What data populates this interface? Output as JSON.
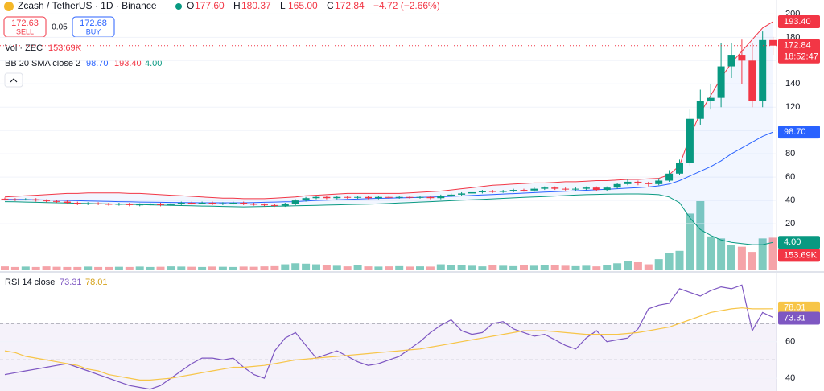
{
  "header": {
    "title": "Zcash / TetherUS · 1D · Binance",
    "ohlc": [
      {
        "label": "O",
        "value": "177.60"
      },
      {
        "label": "H",
        "value": "180.37"
      },
      {
        "label": "L",
        "value": "165.00"
      },
      {
        "label": "C",
        "value": "172.84"
      }
    ],
    "change": "−4.72 (−2.66%)",
    "sell_price": "172.63",
    "sell": "SELL",
    "spread": "0.05",
    "buy_price": "172.68",
    "buy": "BUY",
    "vol_label": "Vol · ZEC",
    "vol_value": "153.69K",
    "bb_label": "BB 20 SMA close 2",
    "bb_basis": "98.70",
    "bb_upper": "193.40",
    "bb_lower": "4.00",
    "countdown": "18:52:47",
    "rsi_label": "RSI 14 close",
    "rsi_value": "73.31",
    "rsi_ma": "78.01"
  },
  "chart_data": [
    {
      "type": "candlestick",
      "up_color": "#089981",
      "down_color": "#f23645",
      "open": [
        41.5,
        41,
        40.5,
        41,
        40,
        39.5,
        39,
        38,
        37,
        37.5,
        37,
        36.5,
        37,
        36,
        36.5,
        37,
        36,
        37,
        38,
        37.5,
        38,
        37,
        37.5,
        38,
        37,
        36.5,
        36,
        35.5,
        37,
        40,
        42,
        43,
        42,
        43,
        42.5,
        43,
        42,
        43,
        42.5,
        43,
        42.5,
        43,
        42,
        44,
        45,
        46,
        47,
        48,
        47.5,
        48,
        49,
        48.5,
        50,
        51,
        50,
        49.5,
        50,
        51,
        49,
        51,
        54,
        56,
        55,
        54,
        57,
        63,
        72,
        110,
        125,
        128,
        155,
        165,
        160,
        125,
        177.6
      ],
      "high": [
        42.5,
        42,
        42,
        42,
        41,
        40.5,
        40,
        39,
        38.5,
        38.5,
        38,
        38,
        38,
        37.5,
        38,
        38,
        38,
        39,
        39,
        39,
        39,
        38.5,
        39,
        39,
        38,
        37.5,
        37,
        38,
        41,
        43,
        44,
        44,
        44,
        44,
        44,
        44,
        44,
        44,
        44,
        44,
        44,
        44,
        45,
        46,
        47,
        48,
        49,
        49,
        49,
        50,
        50,
        51,
        52,
        52,
        51,
        51,
        52,
        52,
        52,
        55,
        58,
        57,
        56,
        59,
        66,
        75,
        118,
        135,
        140,
        175,
        175,
        178,
        175,
        185,
        180.37
      ],
      "low": [
        40,
        39.5,
        40,
        39,
        38.5,
        38,
        37,
        36,
        36,
        36,
        35.5,
        35.5,
        35,
        35,
        35.5,
        35,
        35,
        36,
        36.5,
        37,
        36,
        36,
        36.5,
        36,
        35.5,
        35,
        34.5,
        34.5,
        36,
        39,
        41,
        41,
        41,
        41.5,
        41.5,
        41,
        41,
        41.5,
        41.5,
        41.5,
        41.5,
        41,
        41,
        43,
        44,
        45,
        46,
        46.5,
        46.5,
        47,
        47.5,
        47.5,
        49,
        49,
        48.5,
        48.5,
        49,
        48,
        48,
        50,
        53,
        53,
        52,
        53,
        56,
        62,
        70,
        105,
        118,
        120,
        145,
        140,
        120,
        120,
        165
      ],
      "close": [
        41,
        40.5,
        41,
        40,
        39.5,
        39,
        38,
        37,
        37.5,
        37,
        36.5,
        37,
        36,
        36.5,
        37,
        36,
        37,
        38,
        37.5,
        38,
        37,
        37.5,
        38,
        37,
        36.5,
        36,
        35.5,
        37,
        40,
        42,
        43,
        42,
        43,
        42.5,
        43,
        42,
        43,
        42.5,
        43,
        42.5,
        43,
        42,
        44,
        45,
        46,
        47,
        48,
        47.5,
        48,
        49,
        48.5,
        50,
        51,
        50,
        49.5,
        50,
        51,
        49,
        51,
        54,
        56,
        55,
        54,
        57,
        63,
        72,
        110,
        125,
        128,
        155,
        165,
        160,
        125,
        177.6,
        172.84
      ],
      "series": [
        {
          "name": "upper",
          "color": "#f23645",
          "values": [
            43,
            43.5,
            44,
            44.5,
            45,
            45.5,
            46,
            46,
            46.5,
            46.5,
            46.5,
            46.5,
            46,
            46,
            45.5,
            45,
            44.5,
            44,
            43.5,
            43,
            42.5,
            42,
            42,
            41.5,
            41.5,
            41.5,
            42,
            42.5,
            43,
            44,
            44.5,
            45,
            45.5,
            46,
            46,
            46,
            46,
            46,
            46,
            46.5,
            47,
            47.5,
            48,
            49,
            50,
            51,
            52,
            53,
            53.5,
            54,
            54.5,
            55,
            55,
            55.5,
            56,
            56,
            56.5,
            57,
            57,
            57.5,
            58,
            58,
            58.5,
            59,
            62,
            70,
            95,
            115,
            130,
            145,
            158,
            168,
            178,
            188,
            193.4
          ]
        },
        {
          "name": "basis",
          "color": "#2962ff",
          "values": [
            41,
            41,
            40.8,
            40.6,
            40.4,
            40.2,
            40,
            39.8,
            39.6,
            39.4,
            39.2,
            39,
            38.8,
            38.6,
            38.5,
            38.4,
            38.3,
            38.2,
            38.1,
            38,
            38,
            38,
            38,
            38,
            38.2,
            38.4,
            38.6,
            38.8,
            39,
            39.5,
            40,
            40.3,
            40.6,
            40.9,
            41.2,
            41.5,
            41.8,
            42,
            42.2,
            42.4,
            42.6,
            42.9,
            43.2,
            43.5,
            43.9,
            44.3,
            44.7,
            45.1,
            45.5,
            45.9,
            46.3,
            46.7,
            47.1,
            47.5,
            47.9,
            48.3,
            48.7,
            49.1,
            49.5,
            50,
            50.5,
            51,
            51.5,
            52.5,
            54,
            57,
            61,
            65,
            69,
            74,
            80,
            85,
            90,
            95,
            98.7
          ]
        },
        {
          "name": "lower",
          "color": "#089981",
          "values": [
            39,
            38.8,
            38.6,
            38.4,
            38.2,
            38,
            37.8,
            37.6,
            37.4,
            37.2,
            37,
            36.8,
            36.6,
            36.4,
            36.2,
            36,
            35.8,
            35.6,
            35.4,
            35.2,
            35,
            34.8,
            34.6,
            34.5,
            34.6,
            34.8,
            35,
            35.2,
            35.4,
            35.6,
            35.8,
            36,
            36.2,
            36.4,
            36.6,
            36.8,
            37,
            37.4,
            37.8,
            38.2,
            38.6,
            39,
            39.4,
            39.8,
            40.2,
            40.6,
            41,
            41.4,
            41.8,
            42.2,
            42.6,
            43,
            43.4,
            43.8,
            44.2,
            44.6,
            45,
            45.2,
            45.4,
            45.5,
            45.6,
            45.6,
            45.4,
            45,
            43,
            38,
            25,
            15,
            10,
            6,
            4,
            3,
            2,
            2,
            4
          ]
        }
      ],
      "ylim": [
        -20,
        212
      ],
      "yticks": [
        20,
        40,
        60,
        80,
        100,
        120,
        140,
        160,
        180,
        200
      ],
      "band_fill": "#2962ff"
    },
    {
      "type": "bar",
      "name": "volume",
      "up_color": "#7fcbbf",
      "down_color": "#f5a3a8",
      "ylim": [
        0,
        1300
      ],
      "values": [
        15,
        12,
        14,
        12,
        15,
        13,
        12,
        12,
        14,
        12,
        12,
        13,
        12,
        14,
        12,
        13,
        15,
        14,
        13,
        12,
        14,
        13,
        12,
        14,
        13,
        15,
        16,
        25,
        30,
        28,
        25,
        20,
        18,
        15,
        20,
        15,
        14,
        15,
        16,
        14,
        15,
        14,
        25,
        22,
        20,
        18,
        15,
        22,
        18,
        16,
        20,
        18,
        22,
        20,
        18,
        16,
        18,
        15,
        20,
        30,
        40,
        35,
        25,
        50,
        80,
        90,
        270,
        330,
        160,
        150,
        120,
        110,
        85,
        150,
        153.69
      ]
    },
    {
      "type": "line",
      "ylim": [
        33,
        96
      ],
      "yticks": [
        40,
        60
      ],
      "levels": [
        70,
        50,
        30
      ],
      "series": [
        {
          "name": "RSI",
          "color": "#7e57c2",
          "values": [
            42,
            43,
            44,
            45,
            46,
            47,
            48,
            46,
            44,
            42,
            40,
            38,
            36,
            35,
            34,
            36,
            40,
            44,
            48,
            51,
            51,
            50,
            51,
            46,
            42,
            40,
            55,
            62,
            65,
            58,
            51,
            53,
            55,
            52,
            49,
            47,
            48,
            50,
            52,
            56,
            60,
            65,
            69,
            72,
            66,
            64,
            65,
            70,
            71,
            67,
            65,
            63,
            64,
            61,
            58,
            56,
            62,
            66,
            60,
            61,
            62,
            67,
            78,
            80,
            81,
            89,
            87,
            85,
            88,
            90,
            89,
            91,
            66,
            76,
            73.31
          ]
        },
        {
          "name": "MA",
          "color": "#f7c548",
          "values": [
            55,
            54,
            52,
            51,
            50,
            49,
            48,
            47,
            45,
            44,
            42,
            41,
            40,
            39,
            39,
            39.5,
            40,
            41,
            42,
            43,
            44,
            45,
            46,
            46,
            46.5,
            47,
            48,
            49,
            50,
            50.5,
            51,
            51.5,
            52,
            52.5,
            53,
            53.5,
            54,
            54.5,
            55,
            55.5,
            56,
            57,
            58,
            59,
            60,
            61,
            62,
            63,
            64,
            65,
            66,
            66,
            66,
            65.5,
            65,
            64.5,
            64,
            64,
            64,
            64,
            64.5,
            65,
            66,
            67,
            68,
            70,
            72,
            74,
            76,
            77,
            78,
            78.5,
            78,
            78,
            78.01
          ]
        }
      ]
    }
  ]
}
